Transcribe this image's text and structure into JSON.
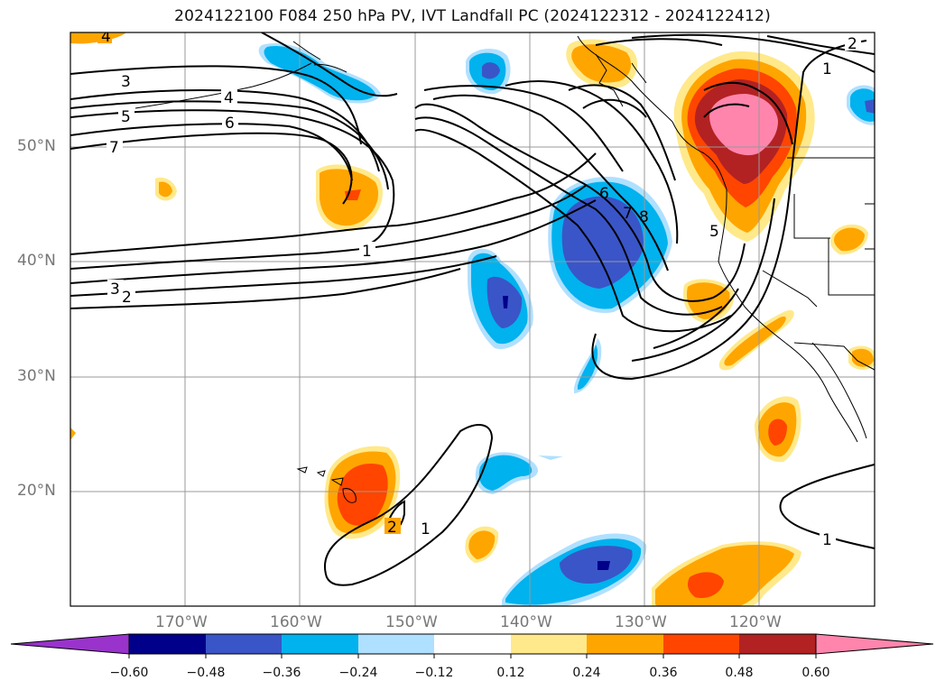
{
  "title": "2024122100 F084 250 hPa PV, IVT Landfall PC (2024122312 - 2024122412)",
  "map": {
    "lat_labels": [
      "50°N",
      "40°N",
      "30°N",
      "20°N"
    ],
    "lon_labels": [
      "170°W",
      "160°W",
      "150°W",
      "140°W",
      "130°W",
      "120°W"
    ],
    "contour_labels": [
      "4",
      "3",
      "5",
      "4",
      "6",
      "7",
      "1",
      "3",
      "2",
      "6",
      "7",
      "8",
      "5",
      "1",
      "2",
      "1",
      "2",
      "1"
    ],
    "colors": {
      "pv_m060": "#9933cc",
      "pv_m048": "#00008b",
      "pv_m036": "#3a55c8",
      "pv_m024": "#00b2ee",
      "pv_m012": "#b0e0ff",
      "pv_p012": "#ffe98a",
      "pv_p024": "#ffa500",
      "pv_p036": "#ff4500",
      "pv_p048": "#b22222",
      "pv_p060": "#ff85ad",
      "contour": "#000000",
      "coast": "#000000",
      "grid": "#999999"
    }
  },
  "colorbar": {
    "ticks": [
      "−0.60",
      "−0.48",
      "−0.36",
      "−0.24",
      "−0.12",
      "0.12",
      "0.24",
      "0.36",
      "0.48",
      "0.60"
    ],
    "colors": [
      "#9933cc",
      "#00008b",
      "#3a55c8",
      "#00b2ee",
      "#b0e0ff",
      "#ffffff",
      "#ffe98a",
      "#ffa500",
      "#ff4500",
      "#b22222",
      "#ff85ad"
    ]
  }
}
